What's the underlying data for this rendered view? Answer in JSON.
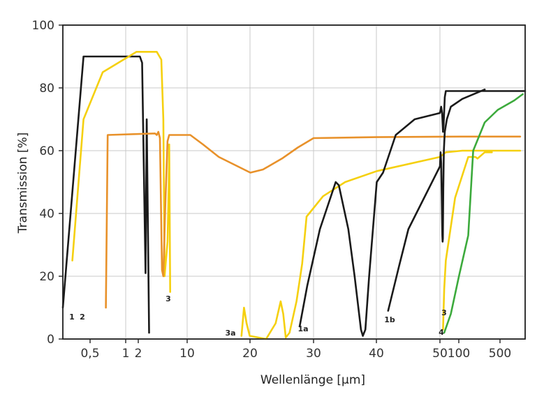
{
  "chart_data": {
    "type": "line",
    "xlabel": "Wellenlänge [µm]",
    "ylabel": "Transmission [%]",
    "ylim": [
      0,
      100
    ],
    "y_ticks": [
      "0",
      "20",
      "40",
      "60",
      "80",
      "100"
    ],
    "x_ticks": [
      "0,5",
      "1",
      "2",
      "10",
      "20",
      "30",
      "40",
      "50",
      "100",
      "500"
    ],
    "grid": true,
    "colors": {
      "black": "#1a1a1a",
      "yellow": "#f5d00f",
      "orange": "#e8912a",
      "green": "#3caa3c",
      "grid": "#c8c8c8"
    },
    "series": [
      {
        "label_id": "1",
        "color": "black",
        "points": [
          [
            0.15,
            10
          ],
          [
            0.28,
            90
          ],
          [
            1.7,
            90
          ],
          [
            1.85,
            88
          ],
          [
            2.1,
            21
          ],
          [
            2.2,
            70
          ],
          [
            2.4,
            2
          ]
        ]
      },
      {
        "label_id": "1",
        "color": "yellow",
        "points": [
          [
            0.2,
            25
          ],
          [
            0.28,
            70
          ],
          [
            0.5,
            85
          ],
          [
            1.5,
            91.5
          ],
          [
            3.2,
            91.5
          ],
          [
            3.8,
            89
          ],
          [
            4.1,
            70
          ],
          [
            4.3,
            20
          ],
          [
            4.8,
            31
          ],
          [
            5.0,
            48
          ],
          [
            5.1,
            62
          ],
          [
            5.3,
            15
          ]
        ]
      },
      {
        "label_id": "2",
        "color": "orange",
        "points": [
          [
            0.55,
            10
          ],
          [
            0.58,
            65
          ],
          [
            3.0,
            65.5
          ],
          [
            3.2,
            65
          ],
          [
            3.4,
            66
          ],
          [
            3.6,
            64
          ],
          [
            3.9,
            22
          ],
          [
            4.1,
            20
          ],
          [
            4.4,
            42
          ],
          [
            4.8,
            63
          ],
          [
            5.1,
            65
          ],
          [
            9.0,
            65
          ],
          [
            10.5,
            65
          ],
          [
            12.5,
            62
          ],
          [
            15.0,
            58
          ],
          [
            20.0,
            53
          ],
          [
            22.0,
            54
          ],
          [
            25.0,
            57.5
          ],
          [
            27.5,
            61
          ],
          [
            30.0,
            64
          ],
          [
            40.0,
            64.3
          ],
          [
            100.0,
            64.5
          ],
          [
            600.0,
            64.5
          ]
        ]
      },
      {
        "label_id": "3",
        "color": "yellow",
        "points": [
          [
            29.3,
            40
          ],
          [
            31.5,
            45.5
          ],
          [
            35.0,
            50
          ],
          [
            40.0,
            53.5
          ],
          [
            50.0,
            58
          ],
          [
            60.0,
            59.5
          ],
          [
            100.0,
            60
          ],
          [
            600.0,
            60
          ]
        ]
      },
      {
        "label_id": "3a",
        "color": "yellow",
        "points": [
          [
            18.6,
            1
          ],
          [
            19.0,
            10
          ],
          [
            19.4,
            5
          ],
          [
            19.9,
            1
          ],
          [
            22.5,
            0
          ],
          [
            24.0,
            5
          ],
          [
            24.8,
            12
          ],
          [
            25.2,
            8
          ],
          [
            25.6,
            0.5
          ],
          [
            26.2,
            2
          ],
          [
            27.3,
            12
          ],
          [
            28.2,
            24
          ],
          [
            28.9,
            39
          ],
          [
            29.3,
            40
          ]
        ]
      },
      {
        "label_id": "1a",
        "color": "black",
        "points": [
          [
            27.8,
            4
          ],
          [
            29.0,
            17
          ],
          [
            31.0,
            35
          ],
          [
            33.5,
            50
          ],
          [
            34.0,
            49
          ],
          [
            35.5,
            35
          ],
          [
            36.5,
            20
          ],
          [
            37.5,
            3
          ],
          [
            37.8,
            1
          ],
          [
            38.2,
            3
          ],
          [
            38.8,
            20
          ],
          [
            40.0,
            50
          ],
          [
            41.0,
            53
          ],
          [
            43.0,
            65
          ],
          [
            46.0,
            70
          ],
          [
            50.0,
            72
          ],
          [
            52.0,
            74
          ],
          [
            53.5,
            72
          ],
          [
            55.0,
            66
          ],
          [
            56.0,
            68
          ],
          [
            58.0,
            77
          ],
          [
            60.0,
            79
          ],
          [
            100.0,
            79
          ],
          [
            300.0,
            79
          ],
          [
            700.0,
            79
          ]
        ]
      },
      {
        "label_id": "1b",
        "color": "black",
        "points": [
          [
            41.8,
            9
          ],
          [
            43.5,
            23
          ],
          [
            45.0,
            35
          ],
          [
            50.0,
            55
          ],
          [
            51.0,
            59.5
          ],
          [
            52.0,
            56
          ],
          [
            53.0,
            44
          ],
          [
            53.8,
            33
          ],
          [
            54.3,
            31
          ],
          [
            54.8,
            32
          ],
          [
            55.5,
            48
          ],
          [
            56.5,
            60
          ],
          [
            58.0,
            66
          ],
          [
            62.0,
            70
          ],
          [
            70.0,
            74
          ],
          [
            100.0,
            76.5
          ],
          [
            200.0,
            79.5
          ]
        ]
      },
      {
        "label_id": "3",
        "color": "yellow",
        "points": [
          [
            55.0,
            3
          ],
          [
            57.0,
            16
          ],
          [
            60.0,
            25
          ],
          [
            80.0,
            45
          ],
          [
            120.0,
            58
          ],
          [
            150.0,
            58
          ],
          [
            160.0,
            57.5
          ],
          [
            200.0,
            59.5
          ],
          [
            250.0,
            59.5
          ]
        ]
      },
      {
        "label_id": "4",
        "color": "green",
        "points": [
          [
            57.0,
            2
          ],
          [
            70.0,
            8
          ],
          [
            90.0,
            20
          ],
          [
            120.0,
            33
          ],
          [
            140.0,
            60
          ],
          [
            200.0,
            69
          ],
          [
            300.0,
            73
          ],
          [
            500.0,
            76
          ],
          [
            650.0,
            78
          ]
        ]
      }
    ],
    "curve_labels": [
      "1",
      "2",
      "3",
      "3a",
      "1a",
      "1b",
      "3",
      "4"
    ]
  }
}
